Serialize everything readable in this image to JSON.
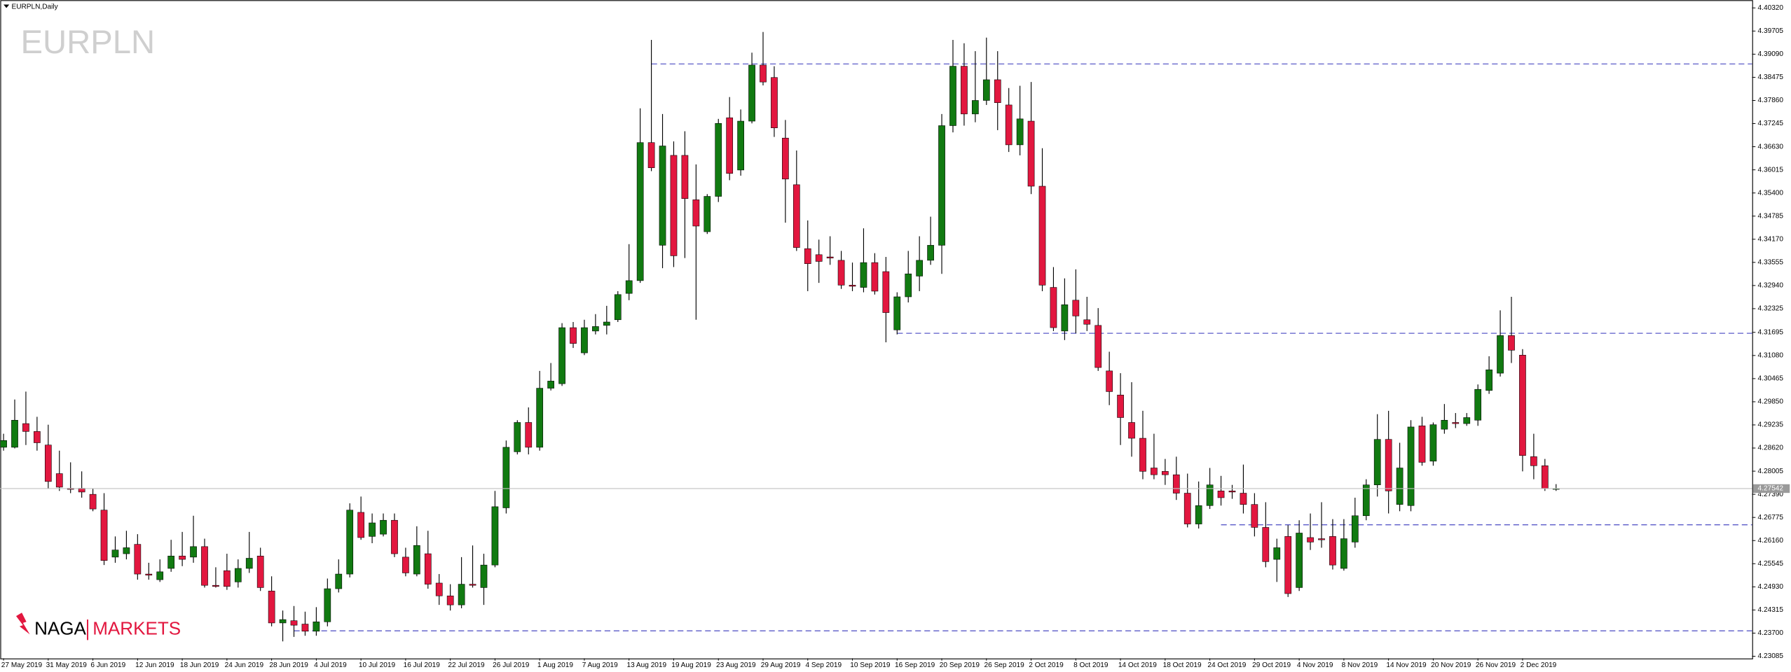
{
  "chart_data": {
    "type": "candlestick",
    "title": "EURPLN,Daily",
    "watermark": "EURPLN",
    "brand": {
      "left": "NAGA",
      "right": "MARKETS"
    },
    "categories": [
      "27 May 2019",
      null,
      null,
      null,
      "31 May 2019",
      null,
      null,
      null,
      "6 Jun 2019",
      null,
      null,
      null,
      "12 Jun 2019",
      null,
      null,
      null,
      "18 Jun 2019",
      null,
      null,
      null,
      "24 Jun 2019",
      null,
      null,
      null,
      "28 Jun 2019",
      null,
      null,
      null,
      "4 Jul 2019",
      null,
      null,
      null,
      "10 Jul 2019",
      null,
      null,
      null,
      "16 Jul 2019",
      null,
      null,
      null,
      "22 Jul 2019",
      null,
      null,
      null,
      "26 Jul 2019",
      null,
      null,
      null,
      "1 Aug 2019",
      null,
      null,
      null,
      "7 Aug 2019",
      null,
      null,
      null,
      "13 Aug 2019",
      null,
      null,
      null,
      "19 Aug 2019",
      null,
      null,
      null,
      "23 Aug 2019",
      null,
      null,
      null,
      "29 Aug 2019",
      null,
      null,
      null,
      "4 Sep 2019",
      null,
      null,
      null,
      "10 Sep 2019",
      null,
      null,
      null,
      "16 Sep 2019",
      null,
      null,
      null,
      "20 Sep 2019",
      null,
      null,
      null,
      "26 Sep 2019",
      null,
      null,
      null,
      "2 Oct 2019",
      null,
      null,
      null,
      "8 Oct 2019",
      null,
      null,
      null,
      "14 Oct 2019",
      null,
      null,
      null,
      "18 Oct 2019",
      null,
      null,
      null,
      "24 Oct 2019",
      null,
      null,
      null,
      "29 Oct 2019",
      null,
      null,
      null,
      "4 Nov 2019",
      null,
      null,
      null,
      "8 Nov 2019",
      null,
      null,
      null,
      "14 Nov 2019",
      null,
      null,
      null,
      "20 Nov 2019",
      null,
      null,
      null,
      "26 Nov 2019",
      null,
      null,
      null,
      "2 Dec 2019",
      null,
      null,
      null
    ],
    "open": [
      4.2864,
      4.2864,
      4.2927,
      4.2906,
      4.287,
      4.2794,
      4.2755,
      4.2755,
      4.2739,
      4.2697,
      4.2572,
      4.2581,
      4.2606,
      4.2527,
      4.2512,
      4.2542,
      4.2575,
      4.2572,
      4.26,
      4.2497,
      4.2536,
      4.2506,
      4.2542,
      4.2575,
      4.2482,
      4.2397,
      4.2403,
      4.2394,
      4.2375,
      4.24,
      4.2488,
      4.2527,
      4.2691,
      4.2627,
      4.2633,
      4.267,
      4.2572,
      4.2527,
      4.2581,
      4.2503,
      4.2469,
      4.2445,
      4.25,
      4.2491,
      4.2551,
      4.2703,
      4.2852,
      4.293,
      4.2864,
      4.3021,
      4.3033,
      4.3182,
      4.3115,
      4.3173,
      4.3188,
      4.3203,
      4.3273,
      4.3307,
      4.3674,
      4.3401,
      4.364,
      4.364,
      4.3522,
      4.3437,
      4.3531,
      4.374,
      4.3601,
      4.3731,
      4.388,
      4.3847,
      4.3686,
      4.3562,
      4.3392,
      4.3376,
      4.337,
      4.3361,
      4.3295,
      4.3289,
      4.3355,
      4.3331,
      4.3176,
      4.3264,
      4.3319,
      4.3361,
      4.3401,
      4.3719,
      4.3877,
      4.375,
      4.3786,
      4.3841,
      4.3774,
      4.3668,
      4.3731,
      4.3558,
      4.3289,
      4.3173,
      4.3255,
      4.3203,
      4.3188,
      4.3067,
      4.3003,
      4.293,
      4.2888,
      4.2809,
      4.28,
      4.2791,
      4.2742,
      4.266,
      4.2709,
      4.2748,
      4.2748,
      4.2742,
      4.2712,
      4.2651,
      4.2566,
      4.2627,
      4.2491,
      4.2624,
      4.2621,
      4.2627,
      4.2542,
      4.2612,
      4.2682,
      4.2764,
      4.2885,
      4.2712,
      4.2709,
      4.2921,
      4.2827,
      4.2912,
      4.293,
      4.2927,
      4.2936,
      4.3015,
      4.3061,
      4.3161,
      4.3109,
      4.2839,
      4.2815,
      4.2754
    ],
    "high": [
      4.29,
      4.2991,
      4.3012,
      4.2945,
      4.2924,
      4.2855,
      4.2824,
      4.28,
      4.2755,
      4.2742,
      4.2627,
      4.2642,
      4.2633,
      4.2557,
      4.2566,
      4.2618,
      4.2639,
      4.2682,
      4.2621,
      4.2545,
      4.2581,
      4.2566,
      4.2639,
      4.2597,
      4.2521,
      4.243,
      4.2442,
      4.2427,
      4.2439,
      4.2515,
      4.2566,
      4.2715,
      4.2733,
      4.2688,
      4.2688,
      4.2688,
      4.2597,
      4.2654,
      4.2642,
      4.2527,
      4.25,
      4.2572,
      4.2603,
      4.2581,
      4.2748,
      4.2882,
      4.2936,
      4.297,
      4.3067,
      4.3088,
      4.3194,
      4.3197,
      4.3203,
      4.3218,
      4.324,
      4.3279,
      4.3404,
      4.3765,
      4.3947,
      4.375,
      4.3677,
      4.3704,
      4.3616,
      4.3537,
      4.3737,
      4.3795,
      4.3762,
      4.3913,
      4.3968,
      4.3877,
      4.3734,
      4.3653,
      4.3467,
      4.3416,
      4.3425,
      4.3386,
      4.3355,
      4.3446,
      4.338,
      4.337,
      4.3276,
      4.3386,
      4.3425,
      4.3477,
      4.375,
      4.3947,
      4.3938,
      4.3917,
      4.3953,
      4.3917,
      4.3819,
      4.3825,
      4.3835,
      4.3659,
      4.3343,
      4.3313,
      4.3337,
      4.3264,
      4.3234,
      4.3118,
      4.3061,
      4.3037,
      4.2961,
      4.29,
      4.2833,
      4.2839,
      4.2794,
      4.2773,
      4.2809,
      4.2788,
      4.2764,
      4.2818,
      4.2742,
      4.2718,
      4.2621,
      4.2657,
      4.267,
      4.2688,
      4.2718,
      4.2673,
      4.2673,
      4.273,
      4.2779,
      4.2952,
      4.2961,
      4.2876,
      4.2936,
      4.2945,
      4.293,
      4.2979,
      4.2955,
      4.2955,
      4.3031,
      4.3106,
      4.3228,
      4.3264,
      4.3125,
      4.29,
      4.2833,
      4.2766
    ],
    "low": [
      4.2855,
      4.2861,
      4.287,
      4.2855,
      4.2755,
      4.2748,
      4.2742,
      4.273,
      4.2694,
      4.2551,
      4.2557,
      4.2566,
      4.2512,
      4.2512,
      4.2506,
      4.2533,
      4.2548,
      4.2557,
      4.2491,
      4.2491,
      4.2485,
      4.2491,
      4.253,
      4.2482,
      4.2388,
      4.2348,
      4.236,
      4.2363,
      4.2363,
      4.2388,
      4.2478,
      4.2518,
      4.2618,
      4.2609,
      4.2627,
      4.2572,
      4.2521,
      4.2521,
      4.2488,
      4.2445,
      4.243,
      4.2436,
      4.2491,
      4.2445,
      4.2545,
      4.2688,
      4.2845,
      4.2845,
      4.2855,
      4.3015,
      4.3027,
      4.3128,
      4.3109,
      4.3164,
      4.3164,
      4.3197,
      4.3255,
      4.3301,
      4.3598,
      4.334,
      4.3343,
      4.3367,
      4.3203,
      4.3431,
      4.3516,
      4.3574,
      4.3586,
      4.3725,
      4.3826,
      4.3689,
      4.3461,
      4.3386,
      4.3279,
      4.3301,
      4.3349,
      4.3285,
      4.3279,
      4.3276,
      4.327,
      4.3143,
      4.3164,
      4.3249,
      4.3279,
      4.3349,
      4.3325,
      4.3701,
      4.3719,
      4.3728,
      4.3774,
      4.3707,
      4.3649,
      4.364,
      4.3537,
      4.3279,
      4.3173,
      4.3149,
      4.3167,
      4.3173,
      4.3067,
      4.2976,
      4.287,
      4.2839,
      4.2779,
      4.2779,
      4.2764,
      4.2724,
      4.2651,
      4.2648,
      4.27,
      4.2709,
      4.2727,
      4.2688,
      4.2627,
      4.2545,
      4.2506,
      4.2466,
      4.2482,
      4.2591,
      4.2597,
      4.2539,
      4.2536,
      4.2597,
      4.267,
      4.2733,
      4.2688,
      4.2694,
      4.2694,
      4.2815,
      4.2815,
      4.29,
      4.2915,
      4.2921,
      4.2921,
      4.3006,
      4.3052,
      4.3088,
      4.28,
      4.2779,
      4.2748,
      4.2748
    ],
    "close": [
      4.2882,
      4.2936,
      4.2906,
      4.2876,
      4.2773,
      4.2758,
      4.2752,
      4.2745,
      4.27,
      4.2563,
      4.2591,
      4.2597,
      4.2527,
      4.2524,
      4.2533,
      4.2575,
      4.2566,
      4.26,
      4.2497,
      4.2494,
      4.2494,
      4.2542,
      4.2569,
      4.2491,
      4.2397,
      4.2406,
      4.2391,
      4.2375,
      4.24,
      4.2488,
      4.2527,
      4.2697,
      4.2624,
      4.2663,
      4.267,
      4.2581,
      4.253,
      4.2603,
      4.25,
      4.2469,
      4.2445,
      4.25,
      4.2497,
      4.2551,
      4.2706,
      4.2864,
      4.293,
      4.2864,
      4.3021,
      4.304,
      4.3182,
      4.314,
      4.3182,
      4.3185,
      4.3197,
      4.327,
      4.3307,
      4.3674,
      4.3607,
      4.3665,
      4.3373,
      4.3525,
      4.3452,
      4.3531,
      4.3725,
      4.3592,
      4.3731,
      4.388,
      4.3835,
      4.3713,
      4.3577,
      4.3395,
      4.3352,
      4.3358,
      4.3367,
      4.3295,
      4.3292,
      4.3355,
      4.3279,
      4.3222,
      4.3264,
      4.3325,
      4.3361,
      4.3401,
      4.3719,
      4.3877,
      4.375,
      4.3786,
      4.3841,
      4.378,
      4.3668,
      4.3737,
      4.3558,
      4.3295,
      4.3182,
      4.3243,
      4.3213,
      4.3191,
      4.3076,
      4.3012,
      4.2943,
      4.2888,
      4.28,
      4.2791,
      4.2791,
      4.2742,
      4.266,
      4.2709,
      4.2764,
      4.273,
      4.2745,
      4.2712,
      4.2651,
      4.256,
      4.2597,
      4.2475,
      4.2636,
      4.2612,
      4.2618,
      4.2551,
      4.2621,
      4.2682,
      4.2764,
      4.2885,
      4.2748,
      4.2809,
      4.2918,
      4.2824,
      4.2924,
      4.2936,
      4.2927,
      4.2943,
      4.3018,
      4.307,
      4.3161,
      4.3122,
      4.2842,
      4.2815,
      4.2754,
      4.27542
    ],
    "up_color": "#117a11",
    "down_color": "#e2173f",
    "levels": [
      4.3883,
      4.3167,
      4.2658,
      4.2376
    ],
    "level_color": "#5a5ac8",
    "ylim": [
      4.2303,
      4.4053
    ],
    "yticks": [
      {
        "value": 4.4032,
        "label": "4.40320"
      },
      {
        "value": 4.39705,
        "label": "4.39705"
      },
      {
        "value": 4.3909,
        "label": "4.39090"
      },
      {
        "value": 4.38475,
        "label": "4.38475"
      },
      {
        "value": 4.3786,
        "label": "4.37860"
      },
      {
        "value": 4.37245,
        "label": "4.37245"
      },
      {
        "value": 4.3663,
        "label": "4.36630"
      },
      {
        "value": 4.36015,
        "label": "4.36015"
      },
      {
        "value": 4.354,
        "label": "4.35400"
      },
      {
        "value": 4.34785,
        "label": "4.34785"
      },
      {
        "value": 4.3417,
        "label": "4.34170"
      },
      {
        "value": 4.33555,
        "label": "4.33555"
      },
      {
        "value": 4.3294,
        "label": "4.32940"
      },
      {
        "value": 4.32325,
        "label": "4.32325"
      },
      {
        "value": 4.31695,
        "label": "4.31695"
      },
      {
        "value": 4.3108,
        "label": "4.31080"
      },
      {
        "value": 4.30465,
        "label": "4.30465"
      },
      {
        "value": 4.2985,
        "label": "4.29850"
      },
      {
        "value": 4.29235,
        "label": "4.29235"
      },
      {
        "value": 4.2862,
        "label": "4.28620"
      },
      {
        "value": 4.28005,
        "label": "4.28005"
      },
      {
        "value": 4.2739,
        "label": "4.27390"
      },
      {
        "value": 4.26775,
        "label": "4.26775"
      },
      {
        "value": 4.2616,
        "label": "4.26160"
      },
      {
        "value": 4.25545,
        "label": "4.25545"
      },
      {
        "value": 4.2493,
        "label": "4.24930"
      },
      {
        "value": 4.24315,
        "label": "4.24315"
      },
      {
        "value": 4.237,
        "label": "4.23700"
      },
      {
        "value": 4.23085,
        "label": "4.23085"
      }
    ],
    "grid": false
  }
}
